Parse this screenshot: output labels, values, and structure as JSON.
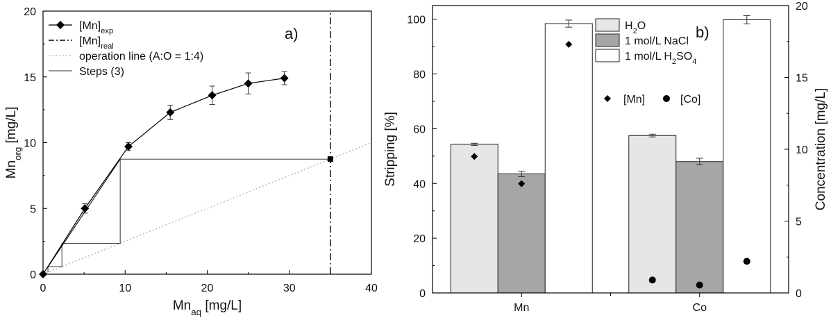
{
  "chart_data": [
    {
      "type": "line",
      "panel_label": "a)",
      "xlabel": {
        "main": "Mn",
        "sub": "aq",
        "unit": " [mg/L]"
      },
      "ylabel": {
        "main": "Mn",
        "sub": "org",
        "unit": " [mg/L]"
      },
      "xlim": [
        0,
        40
      ],
      "ylim": [
        0,
        20
      ],
      "xticks": [
        0,
        10,
        20,
        30,
        40
      ],
      "yticks": [
        0,
        5,
        10,
        15,
        20
      ],
      "legend_position": "top-left",
      "series": [
        {
          "name": {
            "main": "[Mn]",
            "sub": "exp"
          },
          "style": "line-diamond-errorbars",
          "x": [
            0,
            5.1,
            10.4,
            15.5,
            20.6,
            25.0,
            29.4
          ],
          "y": [
            0,
            5.0,
            9.7,
            12.3,
            13.6,
            14.5,
            14.9
          ],
          "error": [
            0,
            0.35,
            0.3,
            0.55,
            0.7,
            0.8,
            0.5
          ]
        },
        {
          "name": {
            "main": "[Mn]",
            "sub": "real"
          },
          "style": "dash-dot-vertical",
          "x": [
            35,
            35
          ],
          "y": [
            0,
            20
          ]
        },
        {
          "name": {
            "main": "operation line (A:O = 1:4)",
            "sub": ""
          },
          "style": "dotted",
          "x": [
            0,
            35,
            40
          ],
          "y": [
            0,
            8.75,
            10
          ]
        },
        {
          "name": {
            "main": "Steps (3)",
            "sub": ""
          },
          "style": "thin-step",
          "x": [
            35,
            9.4,
            9.4,
            2.3,
            2.3,
            0.6,
            0.6
          ],
          "y": [
            8.75,
            8.75,
            2.35,
            2.35,
            0.58,
            0.58,
            0.15
          ]
        }
      ],
      "marker_point": {
        "x": 35,
        "y": 8.75
      }
    },
    {
      "type": "bar",
      "panel_label": "b)",
      "categories": [
        "Mn",
        "Co"
      ],
      "ylabel": "Stripping [%]",
      "y2label": "Concentration [mg/L]",
      "ylim": [
        0,
        105
      ],
      "y2lim": [
        0,
        20
      ],
      "yticks": [
        0,
        20,
        40,
        60,
        80,
        100
      ],
      "y2ticks": [
        0,
        5,
        10,
        15,
        20
      ],
      "legend_position": "top-center",
      "series": [
        {
          "name": {
            "main": "H",
            "sub": "2",
            "tail": "O"
          },
          "color": "#e6e6e6",
          "values": [
            54.3,
            57.5
          ],
          "error": [
            0.4,
            0.5
          ]
        },
        {
          "name": {
            "main": "1 mol/L NaCl",
            "sub": "",
            "tail": ""
          },
          "color": "#a6a6a6",
          "values": [
            43.5,
            48.0
          ],
          "error": [
            1.0,
            1.2
          ]
        },
        {
          "name": {
            "main": "1 mol/L H",
            "sub": "2",
            "tail": "SO",
            "sub2": "4"
          },
          "color": "#ffffff",
          "values": [
            98.4,
            99.8
          ],
          "error": [
            1.3,
            1.5
          ]
        }
      ],
      "concentration_series": [
        {
          "name": "[Mn]",
          "marker": "diamond",
          "values": [
            9.5,
            7.6,
            17.3
          ]
        },
        {
          "name": "[Co]",
          "marker": "circle",
          "values": [
            0.9,
            0.55,
            2.2
          ]
        }
      ]
    }
  ]
}
